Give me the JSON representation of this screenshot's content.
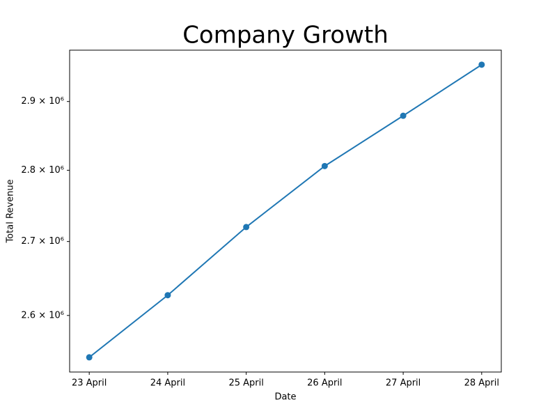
{
  "chart_data": {
    "type": "line",
    "title": "Company Growth",
    "xlabel": "Date",
    "ylabel": "Total Revenue",
    "categories": [
      "23 April",
      "24 April",
      "25 April",
      "26 April",
      "27 April",
      "28 April"
    ],
    "series": [
      {
        "name": "Total Revenue",
        "color": "#1f77b4",
        "values": [
          2545000,
          2627000,
          2720000,
          2806000,
          2879000,
          2955000
        ]
      }
    ],
    "yscale": "log",
    "ylim": [
      2526000,
      2977000
    ],
    "yticks": [
      {
        "value": 2600000,
        "label": "2.6 × 10⁶"
      },
      {
        "value": 2700000,
        "label": "2.7 × 10⁶"
      },
      {
        "value": 2800000,
        "label": "2.8 × 10⁶"
      },
      {
        "value": 2900000,
        "label": "2.9 × 10⁶"
      }
    ],
    "grid": false,
    "legend": false
  }
}
